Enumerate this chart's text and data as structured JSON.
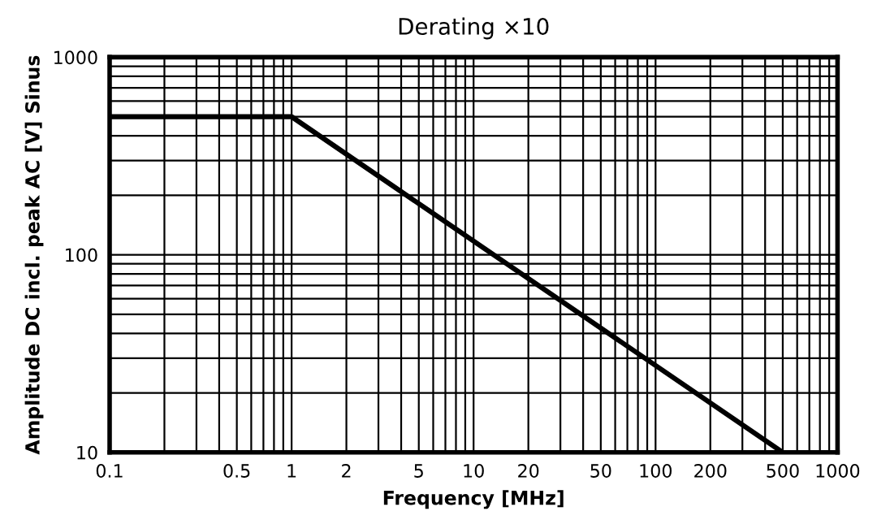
{
  "chart_data": {
    "type": "line",
    "title": "Derating ×10",
    "xlabel": "Frequency [MHz]",
    "ylabel": "Amplitude DC incl. peak AC [V] Sinus",
    "log": "xy",
    "xlim": [
      0.1,
      1000
    ],
    "ylim": [
      10,
      1000
    ],
    "xticks": [
      0.1,
      {
        "value": 0.2,
        "label": null
      },
      {
        "value": 0.3,
        "label": null
      },
      {
        "value": 0.4,
        "label": null
      },
      0.5,
      {
        "value": 0.6,
        "label": null
      },
      {
        "value": 0.7,
        "label": null
      },
      {
        "value": 0.8,
        "label": null
      },
      {
        "value": 0.9,
        "label": null
      },
      1,
      2,
      {
        "value": 3,
        "label": null
      },
      {
        "value": 4,
        "label": null
      },
      5,
      {
        "value": 6,
        "label": null
      },
      {
        "value": 7,
        "label": null
      },
      {
        "value": 8,
        "label": null
      },
      {
        "value": 9,
        "label": null
      },
      10,
      20,
      {
        "value": 30,
        "label": null
      },
      {
        "value": 40,
        "label": null
      },
      50,
      {
        "value": 60,
        "label": null
      },
      {
        "value": 70,
        "label": null
      },
      {
        "value": 80,
        "label": null
      },
      {
        "value": 90,
        "label": null
      },
      100,
      200,
      {
        "value": 300,
        "label": null
      },
      {
        "value": 400,
        "label": null
      },
      500,
      {
        "value": 600,
        "label": null
      },
      {
        "value": 700,
        "label": null
      },
      {
        "value": 800,
        "label": null
      },
      {
        "value": 900,
        "label": null
      },
      1000
    ],
    "yticks": [
      10,
      {
        "value": 20,
        "label": null
      },
      {
        "value": 30,
        "label": null
      },
      {
        "value": 40,
        "label": null
      },
      {
        "value": 50,
        "label": null
      },
      {
        "value": 60,
        "label": null
      },
      {
        "value": 70,
        "label": null
      },
      {
        "value": 80,
        "label": null
      },
      {
        "value": 90,
        "label": null
      },
      100,
      {
        "value": 200,
        "label": null
      },
      {
        "value": 300,
        "label": null
      },
      {
        "value": 400,
        "label": null
      },
      {
        "value": 500,
        "label": null
      },
      {
        "value": 600,
        "label": null
      },
      {
        "value": 700,
        "label": null
      },
      {
        "value": 800,
        "label": null
      },
      {
        "value": 900,
        "label": null
      },
      1000
    ],
    "grid": true,
    "marker": "none",
    "line_style": "solid",
    "series": [
      {
        "color": "#000000",
        "x": [
          0.1,
          1,
          500
        ],
        "values": [
          500,
          500,
          10
        ]
      }
    ]
  }
}
